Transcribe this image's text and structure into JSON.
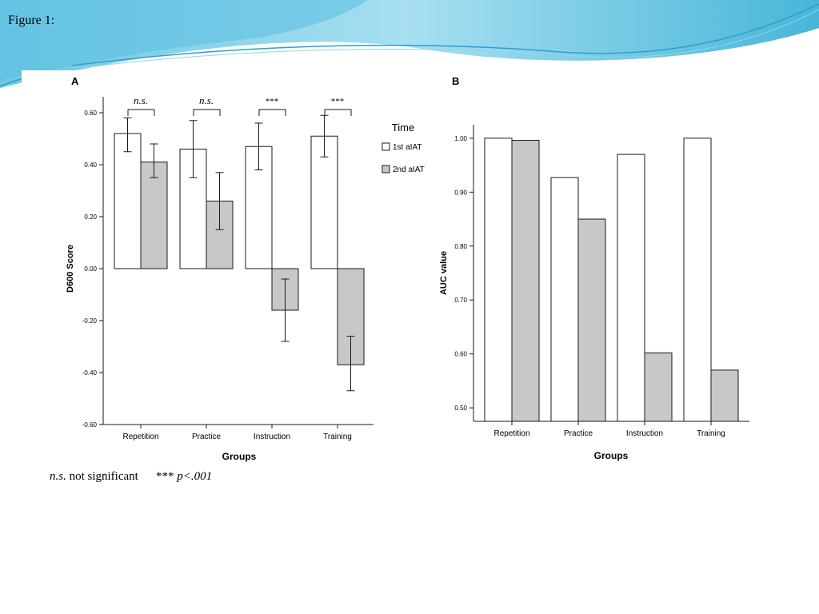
{
  "figure_title": "Figure 1:",
  "footnote": {
    "ns_symbol": "n.s.",
    "ns_text": " not significant",
    "sig_symbol": "***",
    "sig_text": " p<.001"
  },
  "colors": {
    "first": "#ffffff",
    "second": "#c8c8c8",
    "stroke": "#1a1a1a",
    "header_blue": "#5bc0de"
  },
  "chart_data": [
    {
      "panel_label": "A",
      "type": "bar",
      "categories": [
        "Repetition",
        "Practice",
        "Instruction",
        "Training"
      ],
      "series": [
        {
          "name": "1st aIAT",
          "values": [
            0.52,
            0.46,
            0.47,
            0.51
          ],
          "err_low": [
            0.45,
            0.35,
            0.38,
            0.43
          ],
          "err_high": [
            0.58,
            0.57,
            0.56,
            0.59
          ]
        },
        {
          "name": "2nd aIAT",
          "values": [
            0.41,
            0.26,
            -0.16,
            -0.37
          ],
          "err_low": [
            0.35,
            0.15,
            -0.28,
            -0.47
          ],
          "err_high": [
            0.48,
            0.37,
            -0.04,
            -0.26
          ]
        }
      ],
      "xlabel": "Groups",
      "ylabel": "D600 Score",
      "ylim": [
        -0.6,
        0.6
      ],
      "yticks": [
        "0.60",
        "0.40",
        "0.20",
        "0.00",
        "-0.20",
        "-0.40",
        "-0.60"
      ],
      "ytick_values": [
        0.6,
        0.4,
        0.2,
        0.0,
        -0.2,
        -0.4,
        -0.6
      ],
      "legend_title": "Time",
      "legend_position": "right",
      "significance": [
        "n.s.",
        "n.s.",
        "***",
        "***"
      ]
    },
    {
      "panel_label": "B",
      "type": "bar",
      "categories": [
        "Repetition",
        "Practice",
        "Instruction",
        "Training"
      ],
      "series": [
        {
          "name": "1st aIAT",
          "values": [
            1.0,
            0.927,
            0.97,
            1.0
          ]
        },
        {
          "name": "2nd aIAT",
          "values": [
            0.996,
            0.85,
            0.602,
            0.57
          ]
        }
      ],
      "xlabel": "Groups",
      "ylabel": "AUC value",
      "ylim": [
        0.475,
        1.025
      ],
      "yticks": [
        "1.00",
        "0.90",
        "0.80",
        "0.70",
        "0.60",
        "0.50"
      ],
      "ytick_values": [
        1.0,
        0.9,
        0.8,
        0.7,
        0.6,
        0.5
      ]
    }
  ]
}
